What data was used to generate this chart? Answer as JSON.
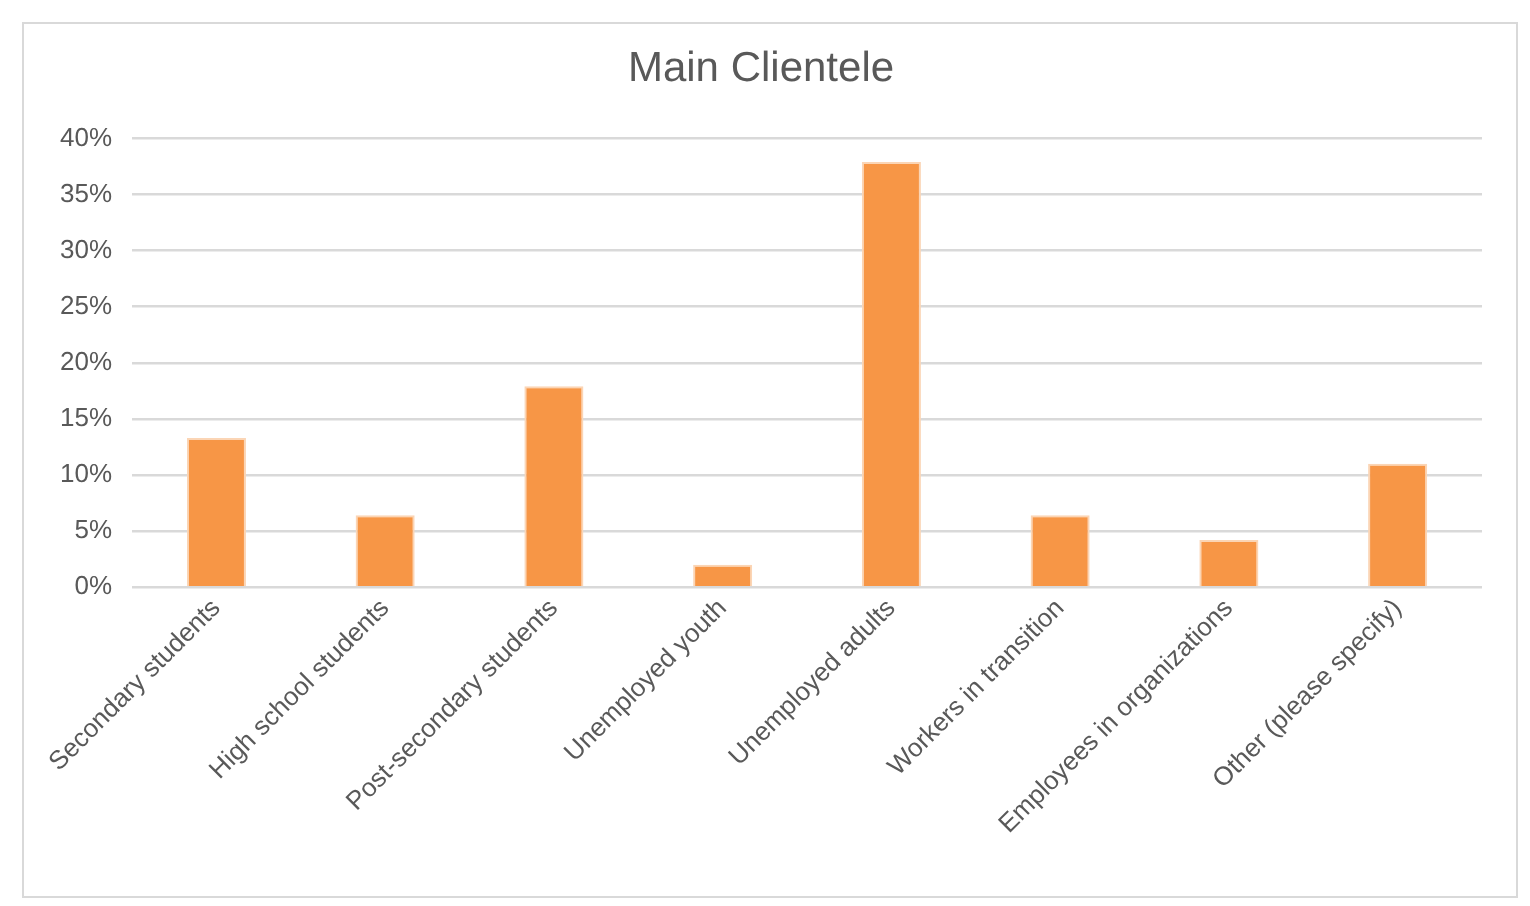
{
  "chart_data": {
    "type": "bar",
    "title": "Main Clientele",
    "categories": [
      "Secondary students",
      "High school students",
      "Post-secondary students",
      "Unemployed youth",
      "Unemployed adults",
      "Workers in transition",
      "Employees in organizations",
      "Other (please specify)"
    ],
    "values": [
      13.3,
      6.4,
      17.9,
      2.0,
      37.9,
      6.4,
      4.2,
      11.0
    ],
    "color": "#f79646",
    "ylim": [
      0,
      40
    ],
    "yticks": [
      {
        "value": 0,
        "label": "0%"
      },
      {
        "value": 5,
        "label": "5%"
      },
      {
        "value": 10,
        "label": "10%"
      },
      {
        "value": 15,
        "label": "15%"
      },
      {
        "value": 20,
        "label": "20%"
      },
      {
        "value": 25,
        "label": "25%"
      },
      {
        "value": 30,
        "label": "30%"
      },
      {
        "value": 35,
        "label": "35%"
      },
      {
        "value": 40,
        "label": "40%"
      }
    ],
    "grid": "y",
    "legend": false
  }
}
